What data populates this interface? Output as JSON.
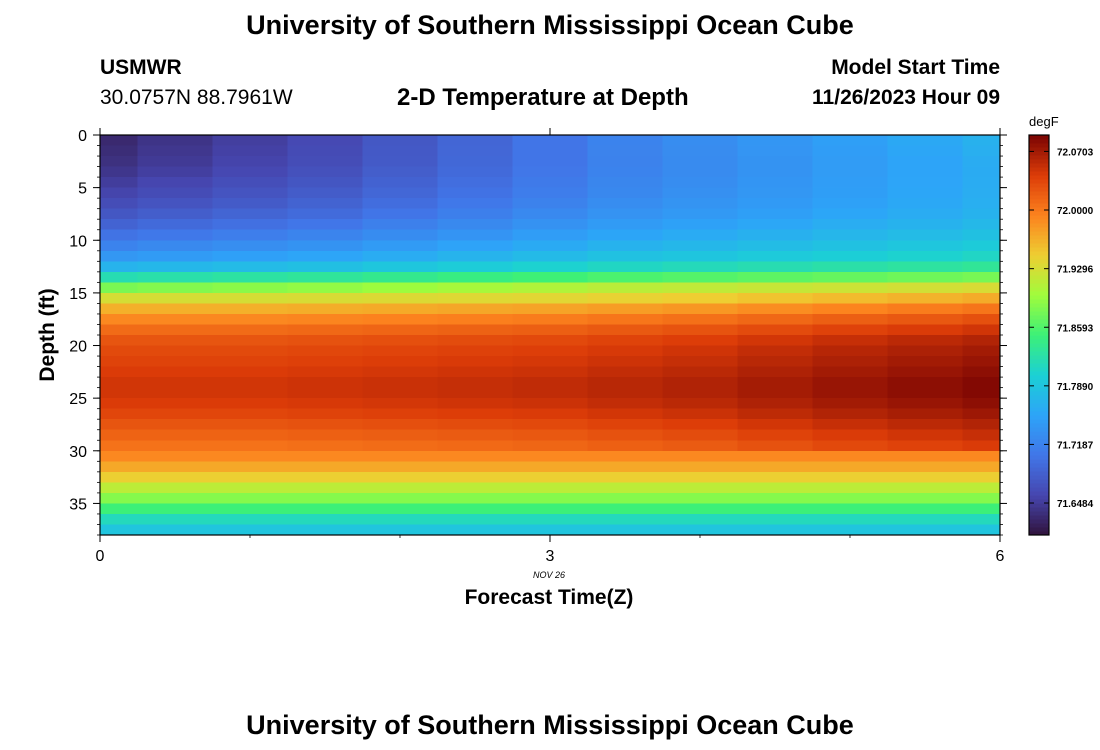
{
  "header": {
    "title": "University of Southern Mississippi Ocean Cube",
    "station": "USMWR",
    "coords": "30.0757N  88.7961W",
    "subtitle": "2-D Temperature at Depth",
    "model_start_label": "Model Start Time",
    "model_start_value": "11/26/2023 Hour 09"
  },
  "footer": {
    "title": "University of Southern Mississippi Ocean Cube"
  },
  "chart_data": {
    "type": "heatmap",
    "xlabel": "Forecast Time(Z)",
    "ylabel": "Depth (ft)",
    "date_label": "NOV 26",
    "xlim": [
      0,
      6
    ],
    "ylim": [
      0,
      38
    ],
    "y_inverted": true,
    "x_ticks": [
      0,
      3,
      6
    ],
    "y_ticks": [
      0,
      5,
      10,
      15,
      20,
      25,
      30,
      35
    ],
    "x": [
      0,
      0.5,
      1,
      1.5,
      2,
      2.5,
      3,
      3.5,
      4,
      4.5,
      5,
      5.5,
      6
    ],
    "colorbar": {
      "unit": "degF",
      "min": 71.61,
      "max": 72.09,
      "tick_values": [
        72.0703,
        72.0,
        71.9296,
        71.8593,
        71.789,
        71.7187,
        71.6484
      ],
      "tick_labels": [
        "72.0703",
        "72.0000",
        "71.9296",
        "71.8593",
        "71.7890",
        "71.7187",
        "71.6484"
      ]
    },
    "depth_profile": {
      "depth": [
        0,
        3,
        6,
        8,
        10,
        12,
        13,
        14,
        15,
        16,
        17,
        18,
        19,
        20,
        22,
        24,
        26,
        28,
        30,
        31,
        32,
        33,
        34,
        35,
        36,
        37,
        38
      ],
      "temperature": [
        71.63,
        71.64,
        71.66,
        71.68,
        71.71,
        71.75,
        71.79,
        71.85,
        71.91,
        71.95,
        71.98,
        72.0,
        72.02,
        72.03,
        72.04,
        72.05,
        72.04,
        72.02,
        72.0,
        71.98,
        71.96,
        71.93,
        71.9,
        71.87,
        71.83,
        71.8,
        71.78
      ]
    },
    "upper_warming_per_x": [
      0.0,
      0.01,
      0.02,
      0.03,
      0.045,
      0.06,
      0.075,
      0.09,
      0.1,
      0.11,
      0.12,
      0.13,
      0.14
    ],
    "warm_core_warming_per_x": [
      0.0,
      0.0,
      0.0,
      0.002,
      0.004,
      0.006,
      0.008,
      0.012,
      0.016,
      0.022,
      0.028,
      0.033,
      0.038
    ]
  }
}
